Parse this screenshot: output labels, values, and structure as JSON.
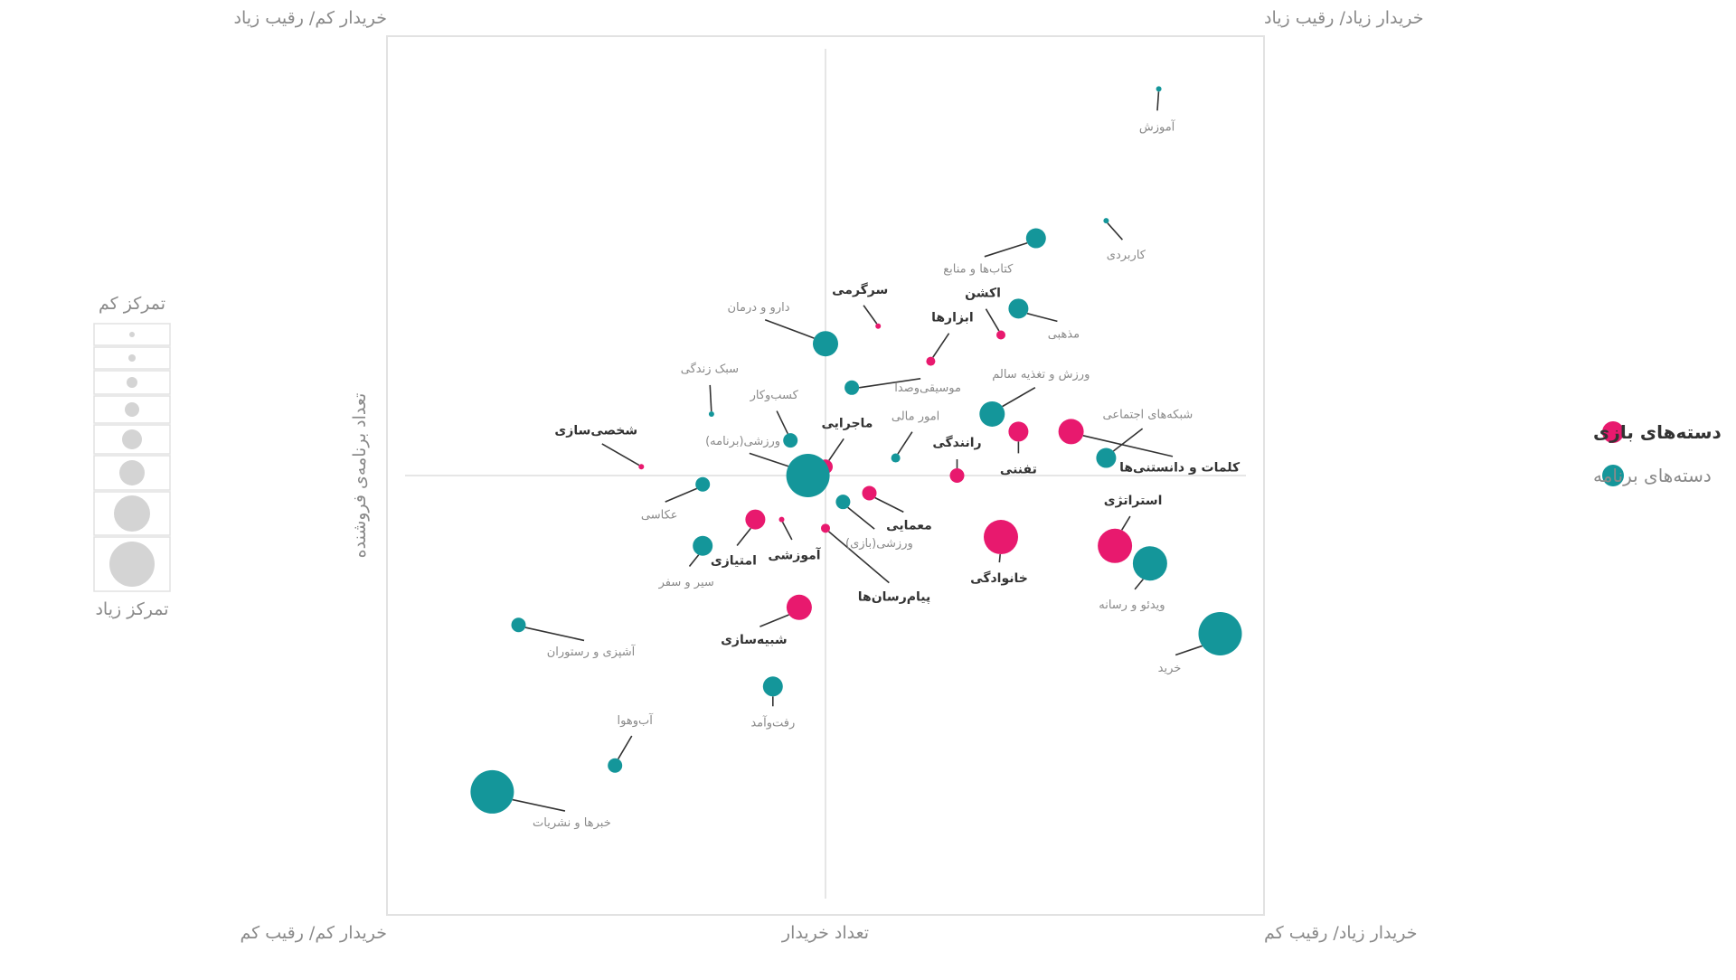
{
  "colors": {
    "game": "#e8196e",
    "app": "#14969a",
    "gridline": "#dedede",
    "frame": "#e2e2e2",
    "size_bubble": "#d4d4d4"
  },
  "chart_data": {
    "type": "scatter",
    "x_axis_label": "تعداد خریدار",
    "y_axis_label": "تعداد برنامه‌ی فروشنده",
    "xlim": [
      0,
      100
    ],
    "ylim": [
      0,
      100
    ],
    "quadrant_labels": {
      "top_left": "خریدار کم/ رقیب زیاد",
      "top_right": "خریدار زیاد/ رقیب زیاد",
      "bottom_left": "خریدار کم/ رقیب کم",
      "bottom_right": "خریدار زیاد/ رقیب کم"
    },
    "grid": false,
    "legend_position": "right",
    "series": [
      {
        "name": "دسته‌های بازی",
        "color": "#e8196e",
        "points": [
          {
            "label": "سرگرمی",
            "x": 56,
            "y": 67
          },
          {
            "label": "اکشن",
            "x": 70,
            "y": 66
          },
          {
            "label": "ابزارها",
            "x": 62,
            "y": 63
          },
          {
            "label": "کلمات و دانستنی‌ها",
            "x": 78,
            "y": 55
          },
          {
            "label": "تفننی",
            "x": 72,
            "y": 55
          },
          {
            "label": "رانندگی",
            "x": 65,
            "y": 50
          },
          {
            "label": "شخصی‌سازی",
            "x": 29,
            "y": 51
          },
          {
            "label": "ماجرایی",
            "x": 50,
            "y": 51
          },
          {
            "label": "معمایی",
            "x": 55,
            "y": 48
          },
          {
            "label": "امتیازی",
            "x": 42,
            "y": 45
          },
          {
            "label": "آموزشی",
            "x": 45,
            "y": 45
          },
          {
            "label": "پیام‌رسان‌ها",
            "x": 50,
            "y": 44
          },
          {
            "label": "خانوادگی",
            "x": 70,
            "y": 43
          },
          {
            "label": "استراتژی",
            "x": 83,
            "y": 42
          },
          {
            "label": "شبیه‌سازی",
            "x": 47,
            "y": 35
          }
        ],
        "sizes": [
          1,
          2,
          2,
          5,
          4,
          3,
          1,
          3,
          3,
          4,
          1,
          2,
          6,
          6,
          5
        ]
      },
      {
        "name": "دسته‌های برنامه",
        "color": "#14969a",
        "points": [
          {
            "label": "آموزش",
            "x": 88,
            "y": 94
          },
          {
            "label": "کاربردی",
            "x": 82,
            "y": 79
          },
          {
            "label": "کتاب‌ها و منابع",
            "x": 74,
            "y": 77
          },
          {
            "label": "مذهبی",
            "x": 72,
            "y": 69
          },
          {
            "label": "دارو و درمان",
            "x": 50,
            "y": 65
          },
          {
            "label": "موسیقی‌وصدا",
            "x": 53,
            "y": 60
          },
          {
            "label": "ورزش و تغذیه سالم",
            "x": 69,
            "y": 57
          },
          {
            "label": "سبک زندگی",
            "x": 37,
            "y": 57
          },
          {
            "label": "کسب‌وکار",
            "x": 46,
            "y": 54
          },
          {
            "label": "امور مالی",
            "x": 58,
            "y": 52
          },
          {
            "label": "شبکه‌های اجتماعی",
            "x": 82,
            "y": 52
          },
          {
            "label": "ورزشی(برنامه)",
            "x": 48,
            "y": 50
          },
          {
            "label": "عکاسی",
            "x": 36,
            "y": 49
          },
          {
            "label": "ورزشی(بازی)",
            "x": 52,
            "y": 47
          },
          {
            "label": "سیر و سفر",
            "x": 36,
            "y": 42
          },
          {
            "label": "ویدئو و رسانه",
            "x": 87,
            "y": 40
          },
          {
            "label": "خرید",
            "x": 95,
            "y": 32
          },
          {
            "label": "آشپزی و رستوران",
            "x": 15,
            "y": 33
          },
          {
            "label": "رفت‌وآمد",
            "x": 44,
            "y": 26
          },
          {
            "label": "آب‌وهوا",
            "x": 26,
            "y": 17
          },
          {
            "label": "خبرها و نشریات",
            "x": 12,
            "y": 14
          }
        ],
        "sizes": [
          1,
          1,
          4,
          4,
          5,
          3,
          5,
          1,
          3,
          2,
          4,
          7,
          3,
          3,
          4,
          6,
          7,
          3,
          4,
          3,
          7
        ]
      }
    ],
    "size_legend": {
      "title_top": "تمرکز کم",
      "title_bottom": "تمرکز زیاد",
      "steps": [
        1,
        2,
        3,
        4,
        5,
        6,
        7,
        8
      ]
    }
  }
}
